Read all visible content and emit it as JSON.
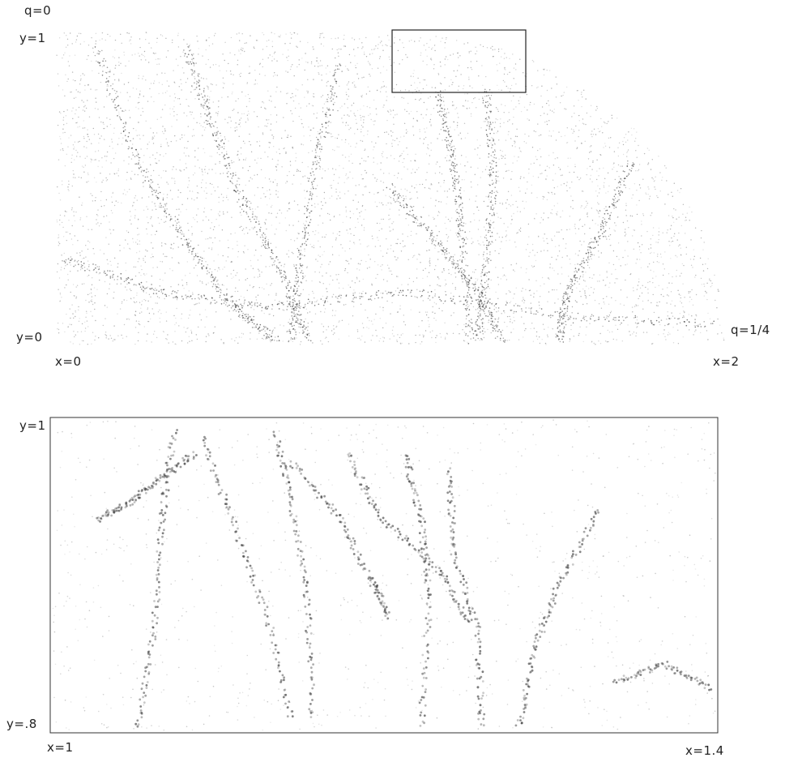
{
  "top_panel": {
    "label_q_top": "q=0",
    "label_y_top": "y=1",
    "label_y_bottom": "y=0",
    "label_q_right": "q=1/4",
    "label_x_left": "x=0",
    "label_x_right": "x=2"
  },
  "bottom_panel": {
    "label_y_top": "y=1",
    "label_y_bottom": "y=.8",
    "label_x_left": "x=1",
    "label_x_right": "x=1.4"
  }
}
